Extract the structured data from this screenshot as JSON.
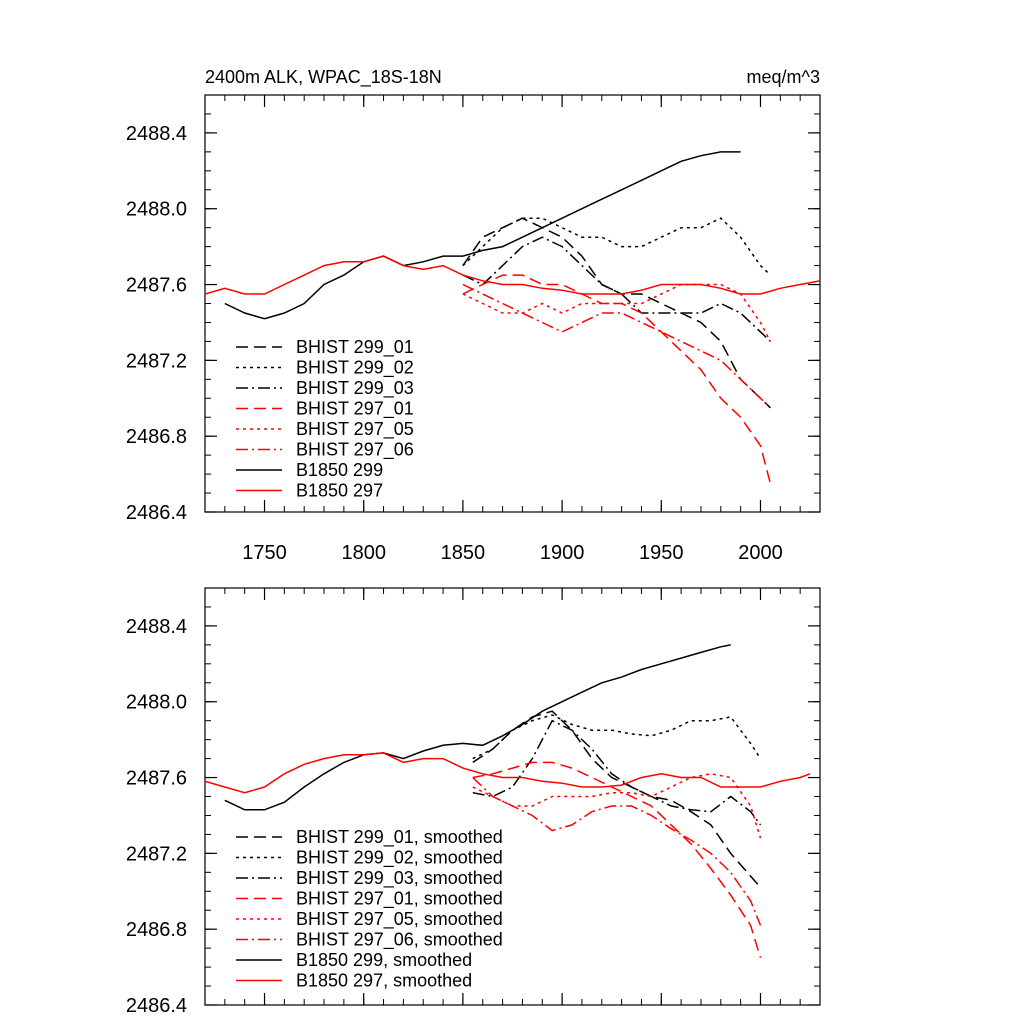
{
  "chart_data": [
    {
      "type": "line",
      "title_left": "2400m ALK, WPAC_18S-18N",
      "title_right": "meq/m^3",
      "xlabel": "",
      "ylabel": "",
      "xlim": [
        1720,
        2030
      ],
      "ylim": [
        2486.4,
        2488.6
      ],
      "yticks": [
        2486.4,
        2486.8,
        2487.2,
        2487.6,
        2488.0,
        2488.4
      ],
      "ytick_labels": [
        "2486.4",
        "2486.8",
        "2487.2",
        "2487.6",
        "2488.0",
        "2488.4"
      ],
      "xticks": [
        1750,
        1800,
        1850,
        1900,
        1950,
        2000
      ],
      "xtick_labels": [
        "1750",
        "1800",
        "1850",
        "1900",
        "1950",
        "2000"
      ],
      "legend_position": "lower-left",
      "series": [
        {
          "name": "BHIST 299_01",
          "color": "#000000",
          "dash": "dash",
          "x": [
            1850,
            1860,
            1870,
            1880,
            1890,
            1900,
            1910,
            1920,
            1930,
            1940,
            1950,
            1960,
            1970,
            1980,
            1990,
            2000,
            2005
          ],
          "y": [
            2487.7,
            2487.85,
            2487.9,
            2487.95,
            2487.9,
            2487.85,
            2487.75,
            2487.6,
            2487.55,
            2487.55,
            2487.5,
            2487.45,
            2487.4,
            2487.3,
            2487.1,
            2487.0,
            2486.95
          ]
        },
        {
          "name": "BHIST 299_02",
          "color": "#000000",
          "dash": "dot",
          "x": [
            1850,
            1860,
            1870,
            1880,
            1890,
            1900,
            1910,
            1920,
            1930,
            1940,
            1950,
            1960,
            1970,
            1980,
            1990,
            2000,
            2005
          ],
          "y": [
            2487.7,
            2487.8,
            2487.9,
            2487.95,
            2487.95,
            2487.9,
            2487.85,
            2487.85,
            2487.8,
            2487.8,
            2487.85,
            2487.9,
            2487.9,
            2487.95,
            2487.85,
            2487.7,
            2487.65
          ]
        },
        {
          "name": "BHIST 299_03",
          "color": "#000000",
          "dash": "dashdot",
          "x": [
            1850,
            1860,
            1870,
            1880,
            1890,
            1900,
            1910,
            1920,
            1930,
            1940,
            1950,
            1960,
            1970,
            1980,
            1990,
            2000,
            2005
          ],
          "y": [
            2487.65,
            2487.6,
            2487.7,
            2487.8,
            2487.85,
            2487.8,
            2487.7,
            2487.6,
            2487.55,
            2487.45,
            2487.45,
            2487.45,
            2487.45,
            2487.5,
            2487.45,
            2487.35,
            2487.3
          ]
        },
        {
          "name": "BHIST 297_01",
          "color": "#ff0000",
          "dash": "dash",
          "x": [
            1850,
            1860,
            1870,
            1880,
            1890,
            1900,
            1910,
            1920,
            1930,
            1940,
            1950,
            1960,
            1970,
            1980,
            1990,
            2000,
            2005
          ],
          "y": [
            2487.55,
            2487.6,
            2487.65,
            2487.65,
            2487.6,
            2487.6,
            2487.55,
            2487.5,
            2487.5,
            2487.45,
            2487.35,
            2487.25,
            2487.15,
            2487.0,
            2486.9,
            2486.75,
            2486.55
          ]
        },
        {
          "name": "BHIST 297_05",
          "color": "#ff0000",
          "dash": "dot",
          "x": [
            1850,
            1860,
            1870,
            1880,
            1890,
            1900,
            1910,
            1920,
            1930,
            1940,
            1950,
            1960,
            1970,
            1980,
            1990,
            2000,
            2005
          ],
          "y": [
            2487.55,
            2487.5,
            2487.45,
            2487.45,
            2487.5,
            2487.45,
            2487.5,
            2487.5,
            2487.5,
            2487.5,
            2487.55,
            2487.6,
            2487.6,
            2487.6,
            2487.55,
            2487.4,
            2487.3
          ]
        },
        {
          "name": "BHIST 297_06",
          "color": "#ff0000",
          "dash": "dashdot",
          "x": [
            1850,
            1860,
            1870,
            1880,
            1890,
            1900,
            1910,
            1920,
            1930,
            1940,
            1950,
            1960,
            1970,
            1980,
            1990,
            2000,
            2005
          ],
          "y": [
            2487.6,
            2487.55,
            2487.5,
            2487.45,
            2487.4,
            2487.35,
            2487.4,
            2487.45,
            2487.45,
            2487.4,
            2487.35,
            2487.3,
            2487.25,
            2487.2,
            2487.1,
            2487.0,
            2486.95
          ]
        },
        {
          "name": "B1850 299",
          "color": "#000000",
          "dash": "solid",
          "x": [
            1730,
            1740,
            1750,
            1760,
            1770,
            1780,
            1790,
            1800,
            1810,
            1820,
            1830,
            1840,
            1850,
            1860,
            1870,
            1880,
            1890,
            1900,
            1910,
            1920,
            1930,
            1940,
            1950,
            1960,
            1970,
            1980,
            1990
          ],
          "y": [
            2487.5,
            2487.45,
            2487.42,
            2487.45,
            2487.5,
            2487.6,
            2487.65,
            2487.72,
            2487.75,
            2487.7,
            2487.72,
            2487.75,
            2487.75,
            2487.78,
            2487.8,
            2487.85,
            2487.9,
            2487.95,
            2488.0,
            2488.05,
            2488.1,
            2488.15,
            2488.2,
            2488.25,
            2488.28,
            2488.3,
            2488.3
          ]
        },
        {
          "name": "B1850 297",
          "color": "#ff0000",
          "dash": "solid",
          "x": [
            1720,
            1730,
            1740,
            1750,
            1760,
            1770,
            1780,
            1790,
            1800,
            1810,
            1820,
            1830,
            1840,
            1850,
            1860,
            1870,
            1880,
            1890,
            1900,
            1910,
            1920,
            1930,
            1940,
            1950,
            1960,
            1970,
            1980,
            1990,
            2000,
            2010,
            2020,
            2030
          ],
          "y": [
            2487.55,
            2487.58,
            2487.55,
            2487.55,
            2487.6,
            2487.65,
            2487.7,
            2487.72,
            2487.72,
            2487.75,
            2487.7,
            2487.68,
            2487.7,
            2487.65,
            2487.62,
            2487.6,
            2487.6,
            2487.58,
            2487.57,
            2487.55,
            2487.55,
            2487.55,
            2487.57,
            2487.6,
            2487.6,
            2487.6,
            2487.58,
            2487.55,
            2487.55,
            2487.58,
            2487.6,
            2487.62
          ]
        }
      ]
    },
    {
      "type": "line",
      "title_left": "",
      "title_right": "",
      "xlabel": "",
      "ylabel": "",
      "xlim": [
        1720,
        2030
      ],
      "ylim": [
        2486.4,
        2488.6
      ],
      "yticks": [
        2486.4,
        2486.8,
        2487.2,
        2487.6,
        2488.0,
        2488.4
      ],
      "ytick_labels": [
        "2486.4",
        "2486.8",
        "2487.2",
        "2487.6",
        "2488.0",
        "2488.4"
      ],
      "xticks": [
        1750,
        1800,
        1850,
        1900,
        1950,
        2000
      ],
      "xtick_labels": [],
      "legend_position": "lower-left",
      "series": [
        {
          "name": "BHIST 299_01, smoothed",
          "color": "#000000",
          "dash": "dash",
          "x": [
            1855,
            1865,
            1875,
            1885,
            1895,
            1905,
            1915,
            1925,
            1935,
            1945,
            1955,
            1965,
            1975,
            1985,
            1995,
            2000
          ],
          "y": [
            2487.68,
            2487.75,
            2487.85,
            2487.92,
            2487.95,
            2487.85,
            2487.7,
            2487.6,
            2487.55,
            2487.5,
            2487.48,
            2487.42,
            2487.35,
            2487.2,
            2487.08,
            2487.02
          ]
        },
        {
          "name": "BHIST 299_02, smoothed",
          "color": "#000000",
          "dash": "dot",
          "x": [
            1855,
            1865,
            1875,
            1885,
            1895,
            1905,
            1915,
            1925,
            1935,
            1945,
            1955,
            1965,
            1975,
            1985,
            1995,
            2000
          ],
          "y": [
            2487.7,
            2487.75,
            2487.85,
            2487.9,
            2487.93,
            2487.88,
            2487.85,
            2487.85,
            2487.83,
            2487.82,
            2487.85,
            2487.9,
            2487.9,
            2487.92,
            2487.78,
            2487.7
          ]
        },
        {
          "name": "BHIST 299_03, smoothed",
          "color": "#000000",
          "dash": "dashdot",
          "x": [
            1855,
            1865,
            1875,
            1885,
            1895,
            1905,
            1915,
            1925,
            1935,
            1945,
            1955,
            1965,
            1975,
            1985,
            1995,
            2000
          ],
          "y": [
            2487.52,
            2487.5,
            2487.55,
            2487.7,
            2487.9,
            2487.85,
            2487.75,
            2487.62,
            2487.55,
            2487.5,
            2487.45,
            2487.43,
            2487.42,
            2487.5,
            2487.42,
            2487.35
          ]
        },
        {
          "name": "BHIST 297_01, smoothed",
          "color": "#ff0000",
          "dash": "dash",
          "x": [
            1855,
            1865,
            1875,
            1885,
            1895,
            1905,
            1915,
            1925,
            1935,
            1945,
            1955,
            1965,
            1975,
            1985,
            1995,
            2000
          ],
          "y": [
            2487.6,
            2487.62,
            2487.65,
            2487.68,
            2487.68,
            2487.65,
            2487.6,
            2487.55,
            2487.5,
            2487.45,
            2487.35,
            2487.25,
            2487.12,
            2486.98,
            2486.82,
            2486.65
          ]
        },
        {
          "name": "BHIST 297_05, smoothed",
          "color": "#ff0000",
          "dash": "dot",
          "x": [
            1855,
            1865,
            1875,
            1885,
            1895,
            1905,
            1915,
            1925,
            1935,
            1945,
            1955,
            1965,
            1975,
            1985,
            1995,
            2000
          ],
          "y": [
            2487.55,
            2487.5,
            2487.45,
            2487.45,
            2487.5,
            2487.5,
            2487.5,
            2487.52,
            2487.52,
            2487.5,
            2487.55,
            2487.6,
            2487.62,
            2487.6,
            2487.45,
            2487.28
          ]
        },
        {
          "name": "BHIST 297_06, smoothed",
          "color": "#ff0000",
          "dash": "dashdot",
          "x": [
            1855,
            1865,
            1875,
            1885,
            1895,
            1905,
            1915,
            1925,
            1935,
            1945,
            1955,
            1965,
            1975,
            1985,
            1995,
            2000
          ],
          "y": [
            2487.6,
            2487.5,
            2487.45,
            2487.4,
            2487.32,
            2487.35,
            2487.42,
            2487.45,
            2487.45,
            2487.4,
            2487.33,
            2487.27,
            2487.2,
            2487.1,
            2486.95,
            2486.82
          ]
        },
        {
          "name": "B1850 299, smoothed",
          "color": "#000000",
          "dash": "solid",
          "x": [
            1730,
            1740,
            1750,
            1760,
            1770,
            1780,
            1790,
            1800,
            1810,
            1820,
            1830,
            1840,
            1850,
            1860,
            1870,
            1880,
            1890,
            1900,
            1910,
            1920,
            1930,
            1940,
            1950,
            1960,
            1970,
            1980,
            1985
          ],
          "y": [
            2487.48,
            2487.43,
            2487.43,
            2487.47,
            2487.55,
            2487.62,
            2487.68,
            2487.72,
            2487.73,
            2487.7,
            2487.74,
            2487.77,
            2487.78,
            2487.77,
            2487.82,
            2487.88,
            2487.95,
            2488.0,
            2488.05,
            2488.1,
            2488.13,
            2488.17,
            2488.2,
            2488.23,
            2488.26,
            2488.29,
            2488.3
          ]
        },
        {
          "name": "B1850 297, smoothed",
          "color": "#ff0000",
          "dash": "solid",
          "x": [
            1720,
            1730,
            1740,
            1750,
            1760,
            1770,
            1780,
            1790,
            1800,
            1810,
            1820,
            1830,
            1840,
            1850,
            1860,
            1870,
            1880,
            1890,
            1900,
            1910,
            1920,
            1930,
            1940,
            1950,
            1960,
            1970,
            1980,
            1990,
            2000,
            2010,
            2020,
            2025
          ],
          "y": [
            2487.58,
            2487.55,
            2487.52,
            2487.55,
            2487.62,
            2487.67,
            2487.7,
            2487.72,
            2487.72,
            2487.73,
            2487.68,
            2487.7,
            2487.7,
            2487.65,
            2487.62,
            2487.6,
            2487.6,
            2487.58,
            2487.57,
            2487.55,
            2487.55,
            2487.56,
            2487.6,
            2487.62,
            2487.6,
            2487.6,
            2487.55,
            2487.55,
            2487.55,
            2487.58,
            2487.6,
            2487.62
          ]
        }
      ]
    }
  ]
}
